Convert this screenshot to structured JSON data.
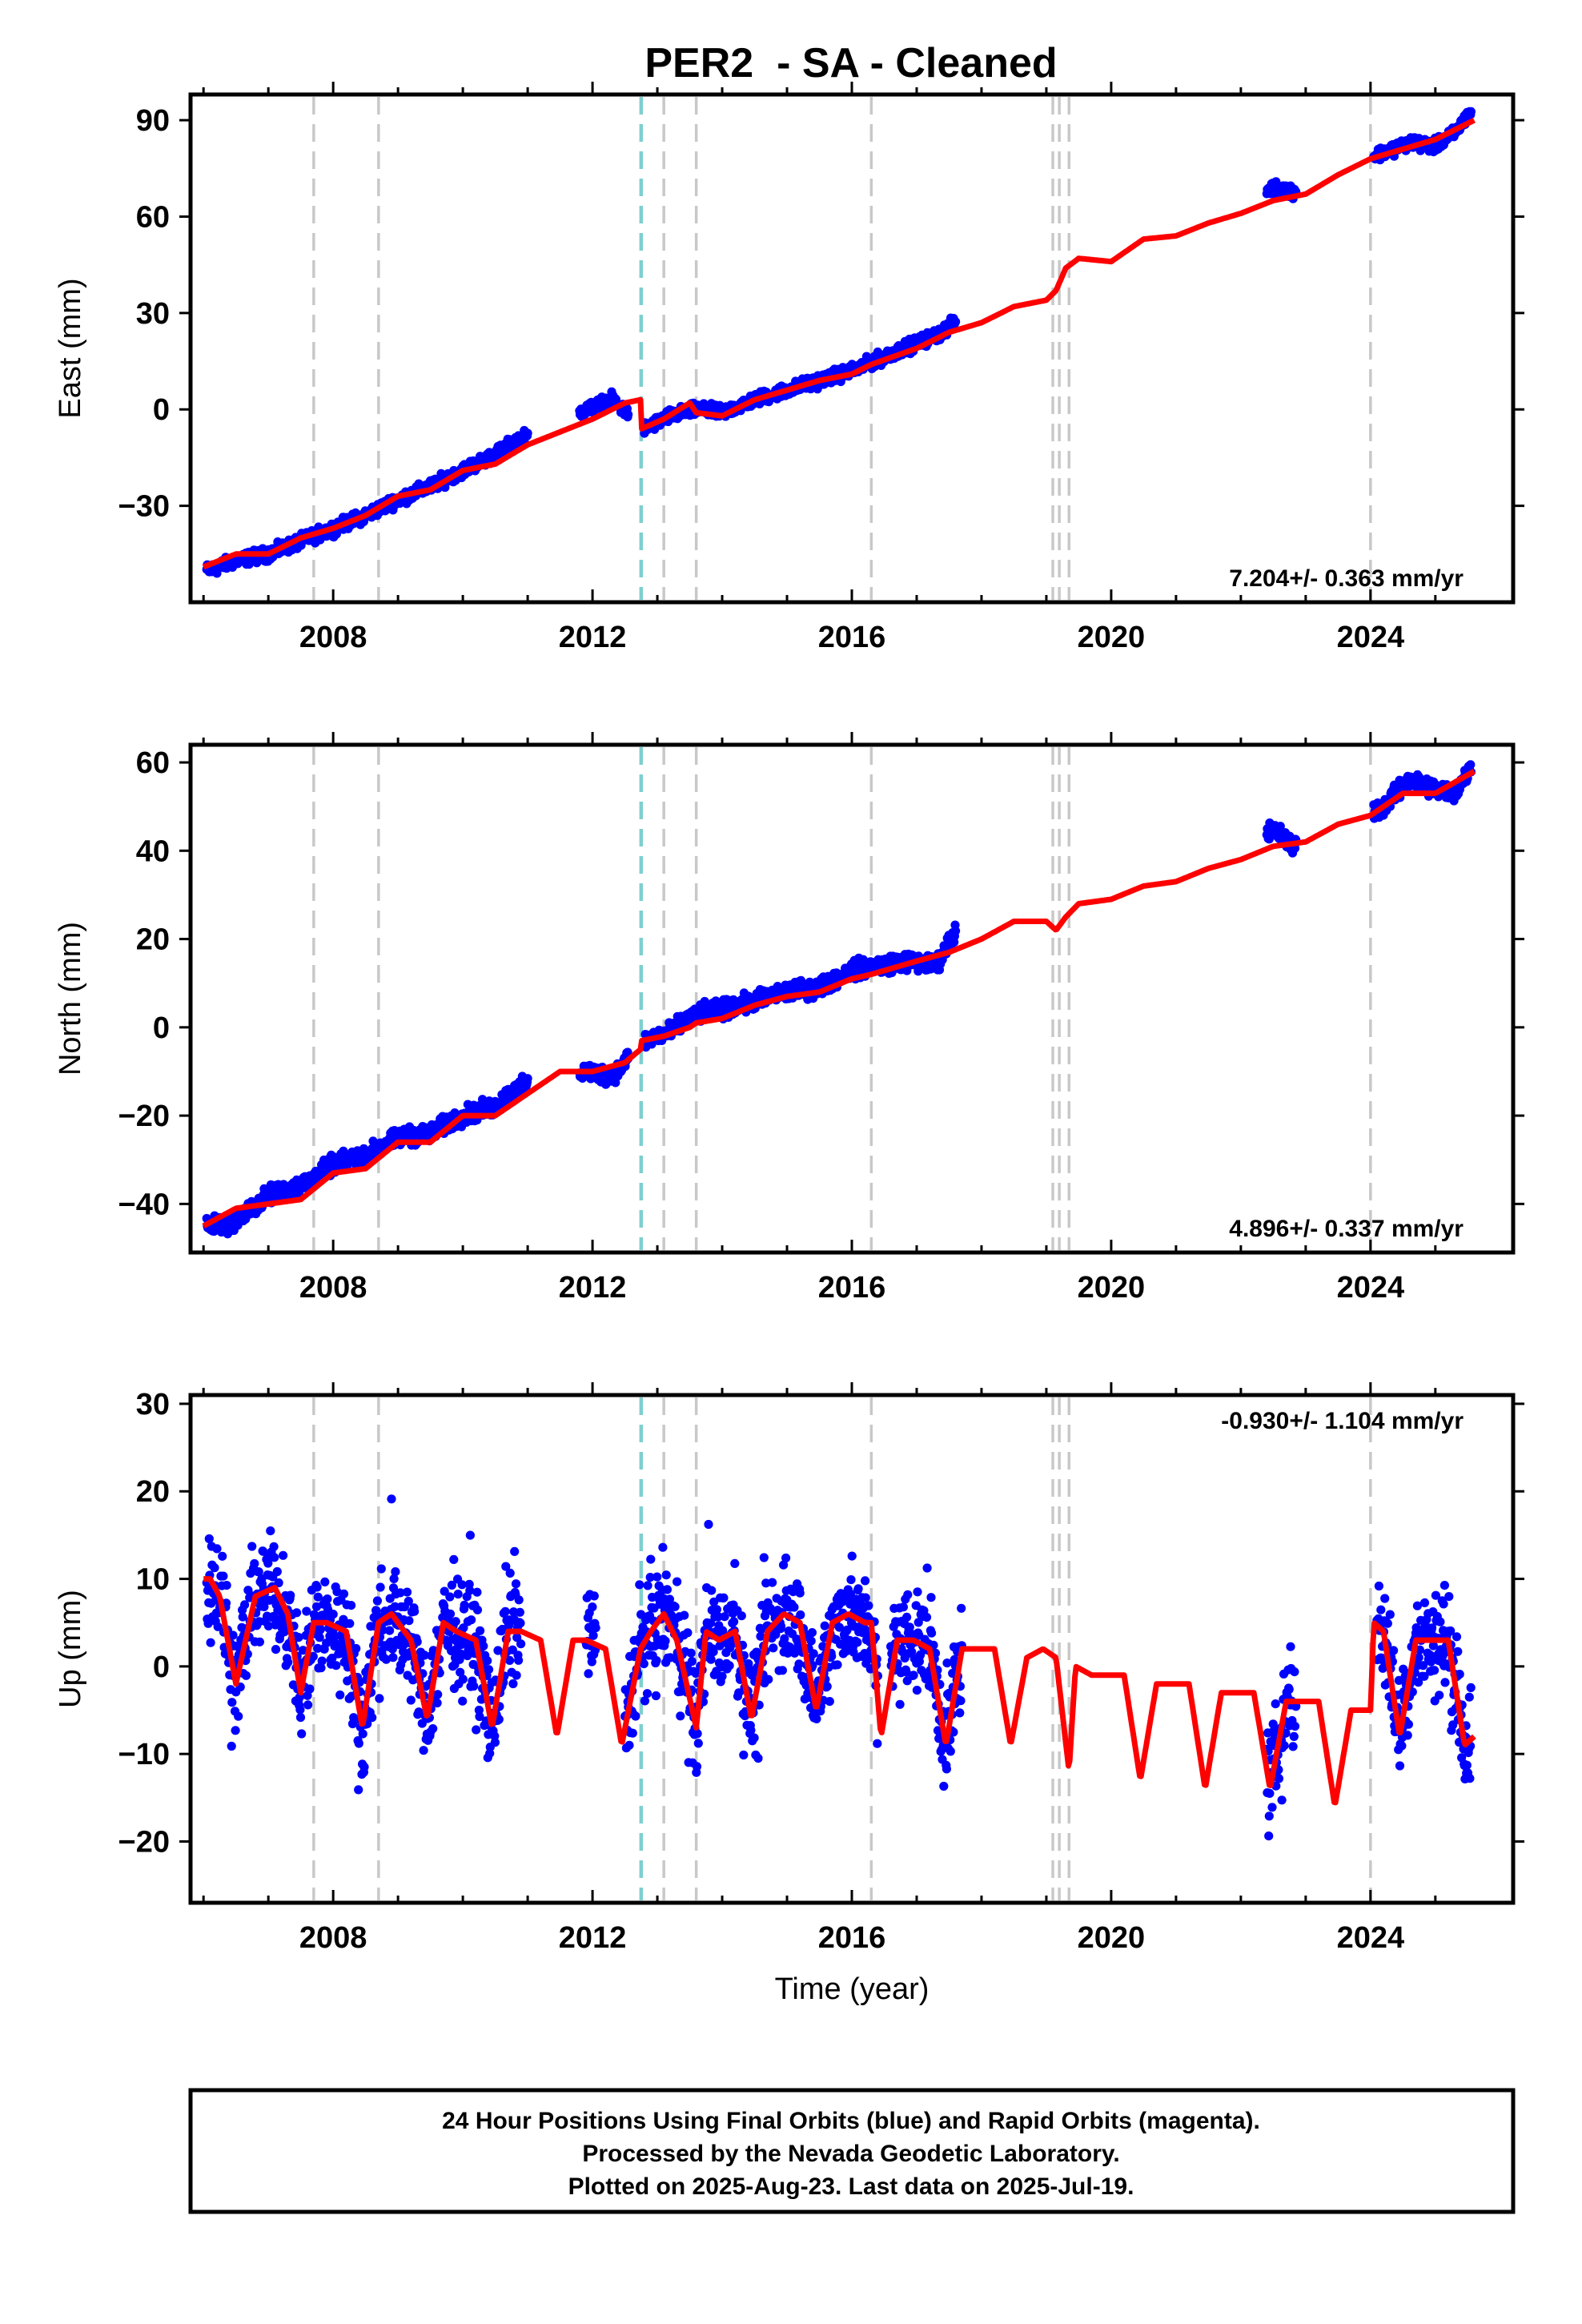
{
  "title": "PER2  - SA - Cleaned",
  "footer": [
    "24 Hour Positions Using Final Orbits (blue) and Rapid Orbits (magenta).",
    "Processed by the Nevada Geodetic Laboratory.",
    "Plotted on 2025-Aug-23. Last data on 2025-Jul-19."
  ],
  "colors": {
    "data": "#0000ff",
    "model": "#ff0000",
    "offset_line": "#c8c8c8",
    "equipment_line": "#7fcfcf"
  },
  "chart_data": [
    {
      "type": "scatter",
      "component": "east",
      "title": "",
      "xlabel": "",
      "ylabel": "East (mm)",
      "xlim": [
        2005.8,
        2026.2
      ],
      "ylim": [
        -60,
        98
      ],
      "x_ticks": [
        2008,
        2012,
        2016,
        2020,
        2024
      ],
      "y_ticks": [
        -30,
        0,
        30,
        60,
        90
      ],
      "rate_label": "7.204+/- 0.363 mm/yr",
      "rate_label_position": "bottom-right",
      "grid": false,
      "offset_lines": [
        2007.7,
        2008.7,
        2013.1,
        2013.6,
        2016.3,
        2019.1,
        2019.2,
        2019.35,
        2024.0
      ],
      "equipment_change_lines": [
        2012.75
      ],
      "series": [
        {
          "kind": "data",
          "x": [
            2006.1,
            2006.5,
            2007.0,
            2007.5,
            2008.0,
            2008.5,
            2009.0,
            2009.5,
            2010.0,
            2010.5,
            2010.8,
            2011.9,
            2012.3,
            2012.8,
            2013.2,
            2013.6,
            2014.0,
            2014.5,
            2015.0,
            2015.5,
            2016.0,
            2016.8,
            2017.3,
            2017.6,
            2022.5,
            2022.8,
            2024.2,
            2024.6,
            2025.0,
            2025.3,
            2025.55
          ],
          "y": [
            -50,
            -47,
            -45,
            -41,
            -37,
            -33,
            -28,
            -24,
            -19,
            -14,
            -10,
            0,
            3,
            -6,
            -2,
            0,
            -1,
            3,
            6,
            9,
            12,
            19,
            23,
            27,
            69,
            68,
            80,
            83,
            82,
            86,
            93
          ]
        },
        {
          "kind": "model",
          "x": [
            2006.0,
            2006.5,
            2007.0,
            2007.5,
            2008.0,
            2008.5,
            2009.0,
            2009.5,
            2010.0,
            2010.5,
            2011.0,
            2011.5,
            2012.0,
            2012.5,
            2012.74,
            2012.76,
            2013.1,
            2013.5,
            2013.6,
            2014.0,
            2014.5,
            2015.0,
            2015.5,
            2016.0,
            2016.3,
            2017.0,
            2017.5,
            2018.0,
            2018.5,
            2019.0,
            2019.15,
            2019.3,
            2019.5,
            2020.0,
            2020.5,
            2021.0,
            2021.5,
            2022.0,
            2022.5,
            2023.0,
            2023.5,
            2024.0,
            2024.5,
            2025.0,
            2025.6
          ],
          "y": [
            -49,
            -45,
            -45,
            -40,
            -37,
            -33,
            -27,
            -25,
            -19,
            -17,
            -11,
            -7,
            -3,
            2,
            3,
            -6,
            -3,
            2,
            -1,
            -2,
            3,
            6,
            9,
            11,
            14,
            19,
            24,
            27,
            32,
            34,
            37,
            44,
            47,
            46,
            53,
            54,
            58,
            61,
            65,
            67,
            73,
            78,
            81,
            84,
            90
          ]
        }
      ]
    },
    {
      "type": "scatter",
      "component": "north",
      "title": "",
      "xlabel": "",
      "ylabel": "North (mm)",
      "xlim": [
        2005.8,
        2026.2
      ],
      "ylim": [
        -51,
        64
      ],
      "x_ticks": [
        2008,
        2012,
        2016,
        2020,
        2024
      ],
      "y_ticks": [
        -40,
        -20,
        0,
        20,
        40,
        60
      ],
      "rate_label": "4.896+/- 0.337 mm/yr",
      "rate_label_position": "bottom-right",
      "grid": false,
      "offset_lines": [
        2007.7,
        2008.7,
        2013.1,
        2013.6,
        2016.3,
        2019.1,
        2019.2,
        2019.35,
        2024.0
      ],
      "equipment_change_lines": [
        2012.75
      ],
      "series": [
        {
          "kind": "data",
          "x": [
            2006.1,
            2006.5,
            2007.0,
            2007.5,
            2008.0,
            2008.5,
            2009.0,
            2009.5,
            2010.0,
            2010.5,
            2010.8,
            2011.9,
            2012.3,
            2012.8,
            2013.2,
            2013.6,
            2014.0,
            2014.5,
            2015.0,
            2015.5,
            2016.0,
            2016.8,
            2017.3,
            2017.6,
            2022.5,
            2022.8,
            2024.2,
            2024.6,
            2025.0,
            2025.3,
            2025.55
          ],
          "y": [
            -45,
            -44,
            -38,
            -36,
            -31,
            -29,
            -25,
            -24,
            -20,
            -18,
            -14,
            -10,
            -11,
            -3,
            -1,
            3,
            4,
            6,
            8,
            9,
            13,
            15,
            14,
            22,
            45,
            41,
            50,
            56,
            54,
            53,
            59
          ]
        },
        {
          "kind": "model",
          "x": [
            2006.0,
            2006.5,
            2007.0,
            2007.5,
            2008.0,
            2008.5,
            2009.0,
            2009.5,
            2010.0,
            2010.5,
            2011.0,
            2011.5,
            2012.0,
            2012.5,
            2012.74,
            2012.76,
            2013.1,
            2013.5,
            2013.6,
            2014.0,
            2014.5,
            2015.0,
            2015.5,
            2016.0,
            2016.3,
            2017.0,
            2017.5,
            2018.0,
            2018.5,
            2019.0,
            2019.15,
            2019.3,
            2019.5,
            2020.0,
            2020.5,
            2021.0,
            2021.5,
            2022.0,
            2022.5,
            2023.0,
            2023.5,
            2024.0,
            2024.5,
            2025.0,
            2025.6
          ],
          "y": [
            -45,
            -41,
            -40,
            -39,
            -33,
            -32,
            -26,
            -26,
            -20,
            -20,
            -15,
            -10,
            -10,
            -8,
            -5,
            -3,
            -2,
            0,
            1,
            2,
            5,
            7,
            8,
            11,
            12,
            15,
            17,
            20,
            24,
            24,
            22,
            25,
            28,
            29,
            32,
            33,
            36,
            38,
            41,
            42,
            46,
            48,
            53,
            53,
            58
          ]
        }
      ]
    },
    {
      "type": "scatter",
      "component": "up",
      "title": "",
      "xlabel": "Time (year)",
      "ylabel": "Up (mm)",
      "xlim": [
        2005.8,
        2026.2
      ],
      "ylim": [
        -27,
        31
      ],
      "x_ticks": [
        2008,
        2012,
        2016,
        2020,
        2024
      ],
      "y_ticks": [
        -20,
        -10,
        0,
        10,
        20,
        30
      ],
      "rate_label": "-0.930+/- 1.104 mm/yr",
      "rate_label_position": "top-right",
      "grid": false,
      "offset_lines": [
        2007.7,
        2008.7,
        2013.1,
        2013.6,
        2016.3,
        2019.1,
        2019.2,
        2019.35,
        2024.0
      ],
      "equipment_change_lines": [
        2012.75
      ],
      "series": [
        {
          "kind": "data",
          "x": [
            2006.1,
            2006.5,
            2007.0,
            2007.5,
            2008.0,
            2008.5,
            2009.0,
            2009.5,
            2010.0,
            2010.5,
            2010.8,
            2011.9,
            2012.3,
            2012.8,
            2013.2,
            2013.6,
            2014.0,
            2014.5,
            2015.0,
            2015.5,
            2016.0,
            2016.8,
            2017.3,
            2017.6,
            2022.5,
            2022.8,
            2024.2,
            2024.6,
            2025.0,
            2025.3,
            2025.55
          ],
          "y": [
            8,
            -3,
            10,
            -2,
            5,
            -7,
            5,
            -5,
            10,
            -8,
            3,
            2,
            -8,
            3,
            6,
            -7,
            4,
            -5,
            6,
            -5,
            10,
            -3,
            3,
            -8,
            -12,
            0,
            -5,
            5,
            3,
            -7,
            -10
          ]
        },
        {
          "kind": "model",
          "x": [
            2006.0,
            2006.1,
            2006.25,
            2006.5,
            2006.8,
            2007.1,
            2007.3,
            2007.5,
            2007.7,
            2007.9,
            2008.2,
            2008.45,
            2008.7,
            2008.9,
            2009.2,
            2009.45,
            2009.7,
            2009.9,
            2010.2,
            2010.45,
            2010.7,
            2010.9,
            2011.2,
            2011.45,
            2011.7,
            2011.9,
            2012.2,
            2012.45,
            2012.74,
            2012.9,
            2013.1,
            2013.3,
            2013.6,
            2013.75,
            2013.95,
            2014.2,
            2014.45,
            2014.7,
            2014.95,
            2015.2,
            2015.45,
            2015.7,
            2015.95,
            2016.2,
            2016.3,
            2016.45,
            2016.7,
            2016.95,
            2017.2,
            2017.45,
            2017.7,
            2017.95,
            2018.2,
            2018.45,
            2018.7,
            2018.95,
            2019.15,
            2019.35,
            2019.45,
            2019.7,
            2019.95,
            2020.2,
            2020.45,
            2020.7,
            2020.95,
            2021.2,
            2021.45,
            2021.7,
            2021.95,
            2022.2,
            2022.45,
            2022.7,
            2022.95,
            2023.2,
            2023.45,
            2023.7,
            2023.95,
            2024.0,
            2024.05,
            2024.2,
            2024.45,
            2024.7,
            2024.95,
            2025.2,
            2025.45,
            2025.6
          ],
          "y": [
            10,
            10,
            8,
            -2,
            8,
            9,
            6,
            -3,
            5,
            5,
            4,
            -7,
            5,
            6,
            3,
            -6,
            5,
            4,
            3,
            -7,
            4,
            4,
            3,
            -8,
            3,
            3,
            2,
            -9,
            2,
            4,
            6,
            3,
            -7,
            4,
            3,
            4,
            -6,
            4,
            6,
            5,
            -5,
            5,
            6,
            5,
            5,
            -8,
            3,
            3,
            2,
            -9,
            2,
            2,
            2,
            -9,
            1,
            2,
            1,
            -12,
            0,
            -1,
            -1,
            -1,
            -13,
            -2,
            -2,
            -2,
            -14,
            -3,
            -3,
            -3,
            -14,
            -4,
            -4,
            -4,
            -16,
            -5,
            -5,
            -5,
            5,
            4,
            -8,
            3,
            3,
            3,
            -9,
            -8
          ]
        }
      ]
    }
  ]
}
